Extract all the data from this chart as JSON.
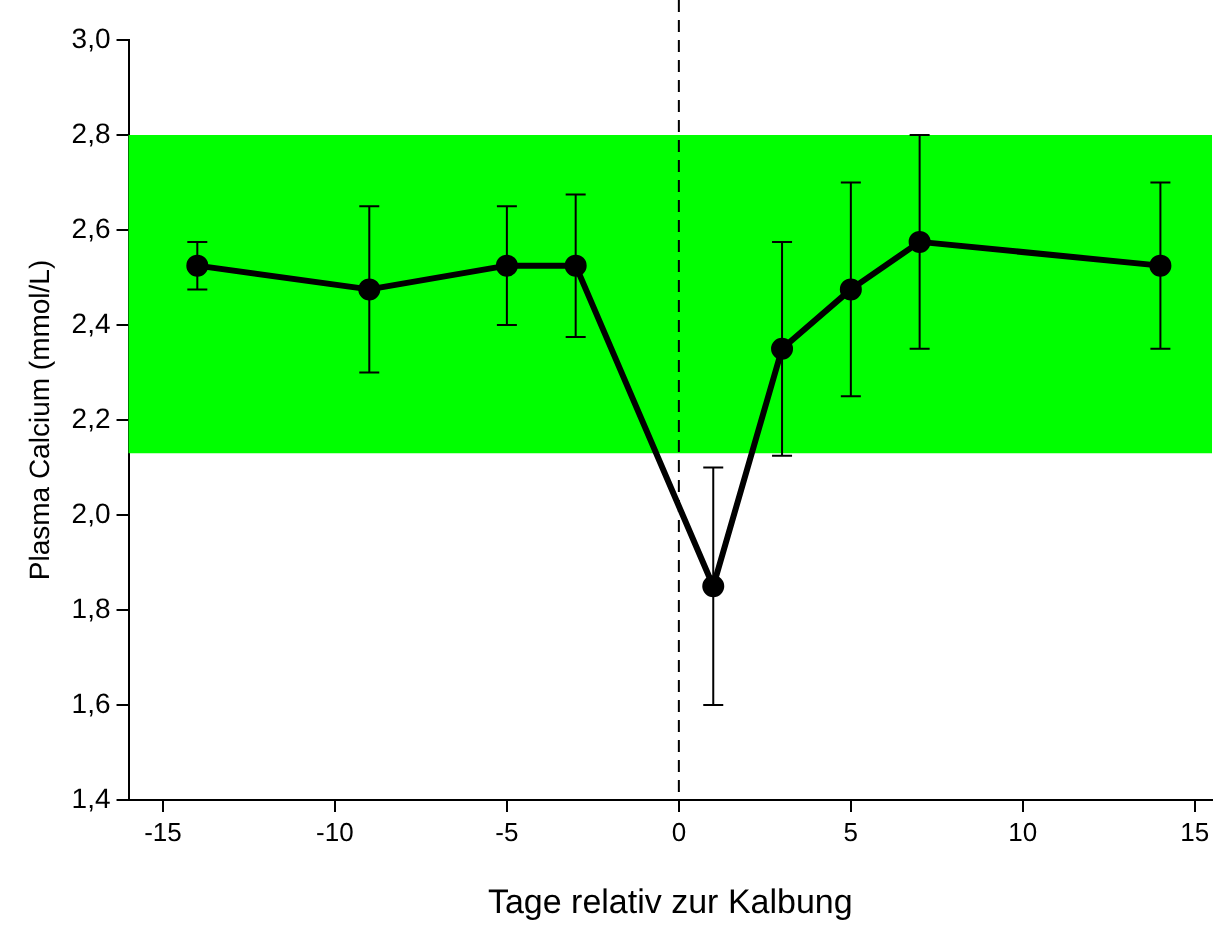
{
  "chart_data": {
    "type": "line",
    "xlabel": "Tage relativ zur Kalbung",
    "ylabel": "Plasma Calcium (mmol/L)",
    "x": [
      -14,
      -9,
      -5,
      -3,
      1,
      3,
      5,
      7,
      14
    ],
    "series": [
      {
        "color": "#000000",
        "values": [
          2.525,
          2.475,
          2.525,
          2.525,
          1.85,
          2.35,
          2.475,
          2.575,
          2.525
        ],
        "errors": [
          [
            2.475,
            2.575
          ],
          [
            2.3,
            2.65
          ],
          [
            2.4,
            2.65
          ],
          [
            2.375,
            2.675
          ],
          [
            1.6,
            2.1
          ],
          [
            2.125,
            2.575
          ],
          [
            2.25,
            2.7
          ],
          [
            2.35,
            2.8
          ],
          [
            2.35,
            2.7
          ]
        ]
      }
    ],
    "xlim": [
      -16,
      15.5
    ],
    "xticks": [
      -15,
      -10,
      -5,
      0,
      5,
      10,
      15
    ],
    "ylim": [
      1.4,
      3.0
    ],
    "yticks": [
      {
        "value": 1.4,
        "label": "1,4"
      },
      {
        "value": 1.6,
        "label": "1,6"
      },
      {
        "value": 1.8,
        "label": "1,8"
      },
      {
        "value": 2.0,
        "label": "2,0"
      },
      {
        "value": 2.2,
        "label": "2,2"
      },
      {
        "value": 2.4,
        "label": "2,4"
      },
      {
        "value": 2.6,
        "label": "2,6"
      },
      {
        "value": 2.8,
        "label": "2,8"
      },
      {
        "value": 3.0,
        "label": "3,0"
      }
    ],
    "ref_lines": [
      {
        "axis": "x",
        "value": 0,
        "color": "#000000",
        "line_style": "dashed"
      }
    ],
    "bands": [
      {
        "axis": "y",
        "from": 2.13,
        "to": 2.8,
        "color": "#00ff00"
      }
    ],
    "grid": false,
    "legend": false,
    "marker": "circle",
    "line_style": "solid"
  }
}
